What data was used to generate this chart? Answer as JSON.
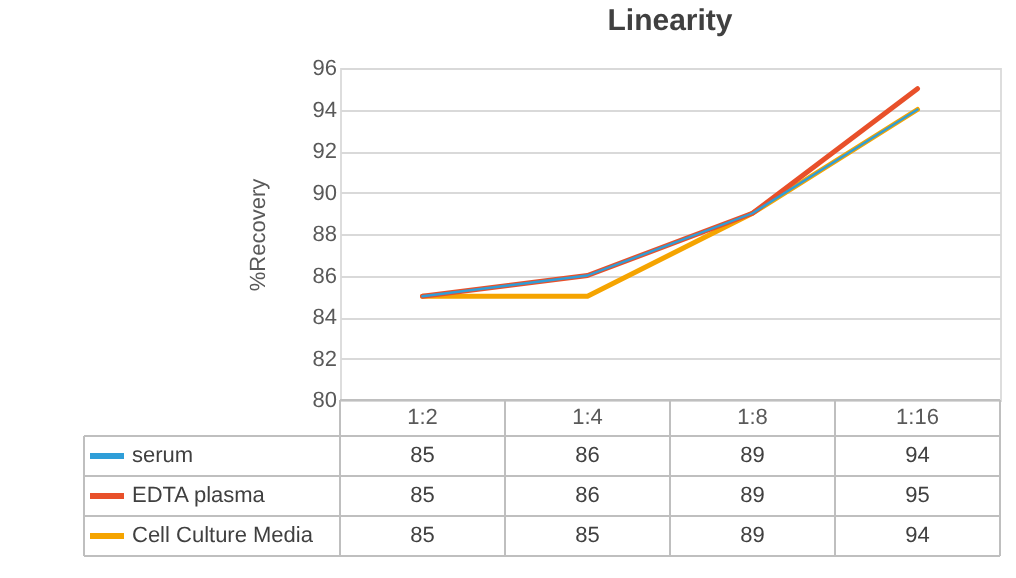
{
  "chart_data": {
    "type": "line",
    "title": "Linearity",
    "ylabel": "%Recovery",
    "categories": [
      "1:2",
      "1:4",
      "1:8",
      "1:16"
    ],
    "series": [
      {
        "name": "serum",
        "color": "#2f9ed8",
        "values": [
          85,
          86,
          89,
          94
        ]
      },
      {
        "name": "EDTA plasma",
        "color": "#e8502a",
        "values": [
          85,
          86,
          89,
          95
        ]
      },
      {
        "name": "Cell Culture Media",
        "color": "#f5a400",
        "values": [
          85,
          85,
          89,
          94
        ]
      }
    ],
    "ylim": [
      80,
      96
    ],
    "yticks": [
      80,
      82,
      84,
      86,
      88,
      90,
      92,
      94,
      96
    ],
    "grid": "y",
    "legend": "bottom",
    "data_labels": true,
    "line_style": "solid",
    "marker": "none"
  }
}
